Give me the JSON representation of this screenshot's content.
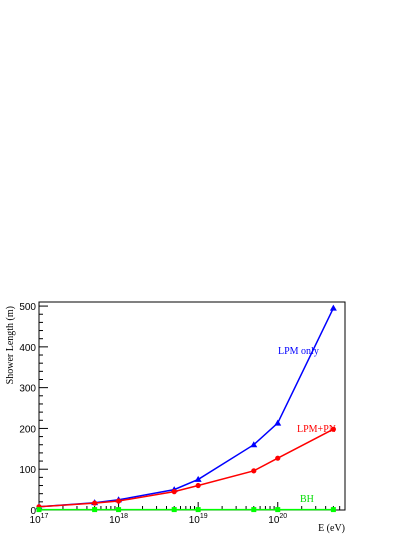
{
  "chart_data": {
    "type": "line",
    "xlabel": "E (eV)",
    "ylabel": "Shower Length (m)",
    "xscale": "log",
    "xlim": [
      1e+17,
      7e+20
    ],
    "ylim": [
      0,
      510
    ],
    "x_tick_labels": [
      {
        "base": "10",
        "exp": "17"
      },
      {
        "base": "10",
        "exp": "18"
      },
      {
        "base": "10",
        "exp": "19"
      },
      {
        "base": "10",
        "exp": "20"
      }
    ],
    "y_tick_labels": [
      "0",
      "100",
      "200",
      "300",
      "400",
      "500"
    ],
    "grid": false,
    "series": [
      {
        "name": "LPM only",
        "color": "#0000ff",
        "marker": "triangle",
        "x": [
          1e+17,
          5e+17,
          1e+18,
          5e+18,
          1e+19,
          5e+19,
          1e+20,
          5e+20
        ],
        "y": [
          8,
          18,
          25,
          50,
          75,
          160,
          213,
          495
        ]
      },
      {
        "name": "LPM+PN",
        "color": "#ff0000",
        "marker": "circle",
        "x": [
          1e+17,
          5e+17,
          1e+18,
          5e+18,
          1e+19,
          5e+19,
          1e+20,
          5e+20
        ],
        "y": [
          8,
          17,
          22,
          45,
          60,
          96,
          127,
          198
        ]
      },
      {
        "name": "BH",
        "color": "#00ff00",
        "marker": "square",
        "x": [
          1e+17,
          5e+17,
          1e+18,
          5e+18,
          1e+19,
          5e+19,
          1e+20,
          5e+20
        ],
        "y": [
          1,
          1,
          1,
          1,
          1,
          1,
          1,
          1
        ]
      }
    ]
  }
}
